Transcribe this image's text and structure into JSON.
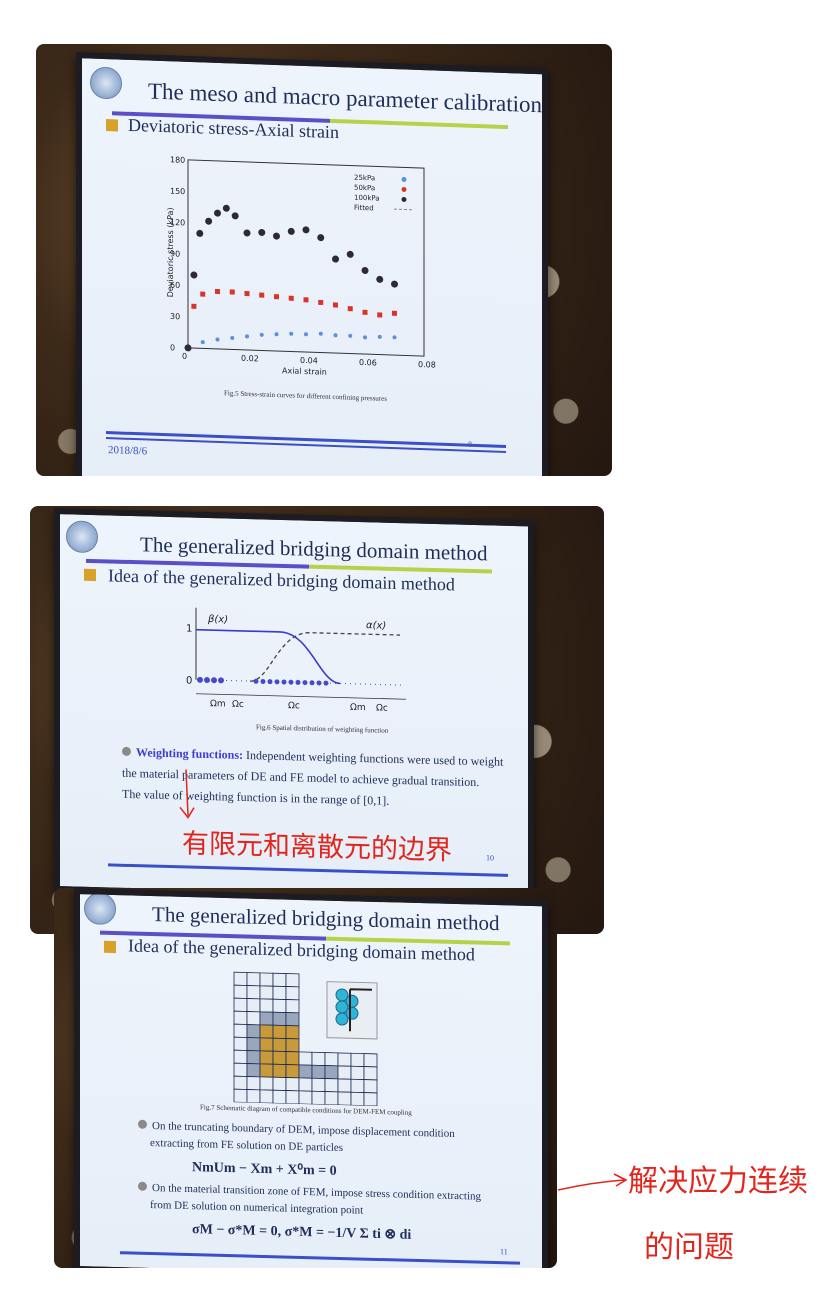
{
  "slide1": {
    "title": "The meso and macro parameter calibration",
    "subtitle": "Deviatoric stress-Axial strain",
    "caption": "Fig.5 Stress-strain curves for different confining pressures",
    "date": "2018/8/6",
    "page": "8"
  },
  "chart_data": {
    "type": "scatter",
    "xlabel": "Axial strain",
    "ylabel": "Deviatoric stress (kPa)",
    "xlim": [
      0,
      0.08
    ],
    "ylim": [
      0,
      180
    ],
    "x_ticks": [
      "0",
      "0.02",
      "0.04",
      "0.06",
      "0.08"
    ],
    "y_ticks": [
      "0",
      "30",
      "60",
      "90",
      "120",
      "150",
      "180"
    ],
    "legend_position": "top-right",
    "series": [
      {
        "name": "25kPa",
        "color": "#5b8fe0",
        "x": [
          0,
          0.005,
          0.01,
          0.015,
          0.02,
          0.025,
          0.03,
          0.035,
          0.04,
          0.045,
          0.05,
          0.055,
          0.06,
          0.065,
          0.07
        ],
        "y": [
          0,
          6,
          9,
          11,
          13,
          15,
          16,
          17,
          17,
          18,
          17,
          17,
          16,
          17,
          17
        ]
      },
      {
        "name": "50kPa",
        "color": "#d9332a",
        "x": [
          0,
          0.002,
          0.005,
          0.01,
          0.015,
          0.02,
          0.025,
          0.03,
          0.035,
          0.04,
          0.045,
          0.05,
          0.055,
          0.06,
          0.065,
          0.07
        ],
        "y": [
          0,
          40,
          52,
          55,
          55,
          54,
          53,
          52,
          51,
          50,
          48,
          46,
          43,
          40,
          38,
          40
        ]
      },
      {
        "name": "100kPa",
        "color": "#2e2a33",
        "x": [
          0,
          0.002,
          0.004,
          0.007,
          0.01,
          0.013,
          0.016,
          0.02,
          0.025,
          0.03,
          0.035,
          0.04,
          0.045,
          0.05,
          0.055,
          0.06,
          0.065,
          0.07
        ],
        "y": [
          0,
          70,
          110,
          122,
          130,
          135,
          128,
          112,
          113,
          110,
          115,
          117,
          110,
          90,
          95,
          80,
          72,
          68
        ]
      },
      {
        "name": "Fitted",
        "color": "#888888",
        "x": [],
        "y": []
      }
    ]
  },
  "slide2": {
    "title": "The generalized bridging domain method",
    "subtitle": "Idea of the generalized bridging domain method",
    "beta_label": "β(x)",
    "alpha_label": "α(x)",
    "y_one": "1",
    "y_zero": "0",
    "omega_m": "Ωm",
    "omega_c": "Ωc",
    "caption": "Fig.6 Spatial distribution of weighting function",
    "bullet_label": "Weighting functions:",
    "bullet_line1": "Independent weighting functions were used to weight",
    "bullet_line2": "the material parameters of DE and FE model to achieve gradual transition.",
    "bullet_line3": "The value of weighting function is in the range of [0,1].",
    "handwriting": "有限元和离散元的边界",
    "page": "10"
  },
  "slide3": {
    "title": "The generalized bridging domain method",
    "subtitle": "Idea of the generalized bridging domain method",
    "caption": "Fig.7 Schematic diagram of compatible conditions for DEM-FEM coupling",
    "bullet1_line1": "On the truncating boundary of DEM, impose displacement condition",
    "bullet1_line2": "extracting from FE solution on DE particles",
    "formula1": "NmUm − Xm + X⁰m = 0",
    "bullet2_line1": "On the material transition zone of FEM, impose stress condition extracting",
    "bullet2_line2": "from DE solution on numerical integration point",
    "formula2": "σM − σ*M = 0,   σ*M = −1/V Σ ti ⊗ di",
    "page": "11"
  },
  "handwriting_side": {
    "line1": "解决应力连续",
    "line2": "的问题"
  }
}
